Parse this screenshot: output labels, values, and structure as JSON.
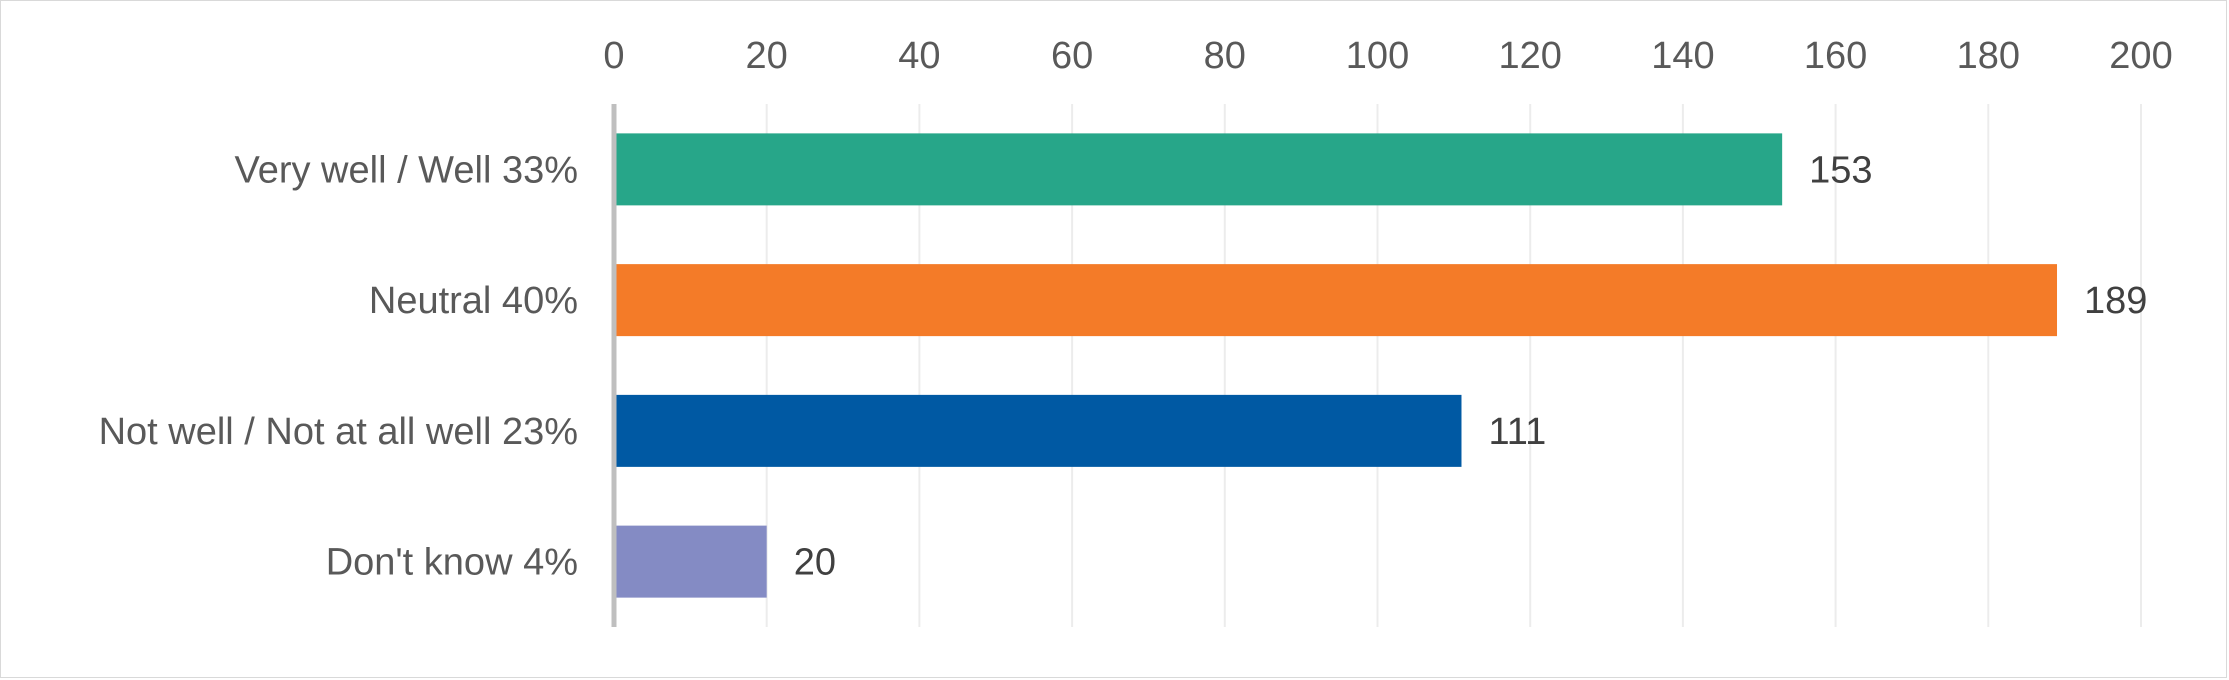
{
  "chart_data": {
    "type": "bar",
    "orientation": "horizontal",
    "categories": [
      "Very well / Well 33%",
      "Neutral 40%",
      "Not well / Not at all well 23%",
      "Don't know 4%"
    ],
    "values": [
      153,
      189,
      111,
      20
    ],
    "data_labels": [
      "153",
      "189",
      "111",
      "20"
    ],
    "colors": [
      "#27a689",
      "#f47b28",
      "#0059a3",
      "#848bc4"
    ],
    "xlim": [
      0,
      200
    ],
    "x_ticks": [
      "0",
      "20",
      "40",
      "60",
      "80",
      "100",
      "120",
      "140",
      "160",
      "180",
      "200"
    ],
    "axis_position": "top",
    "grid": true,
    "legend": "none"
  }
}
